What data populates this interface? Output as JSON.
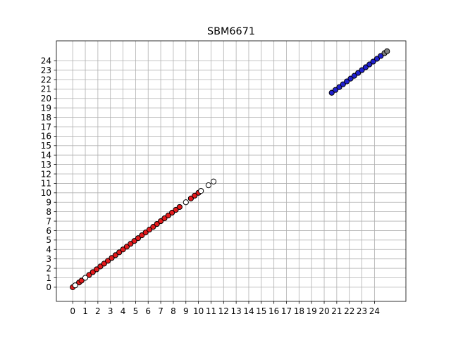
{
  "chart_data": {
    "type": "scatter",
    "title": "SBM6671",
    "xlabel": "",
    "ylabel": "",
    "xlim": [
      -1.3,
      26.5
    ],
    "ylim": [
      -1.5,
      26.1
    ],
    "grid": true,
    "x_ticks": [
      "0",
      "1",
      "2",
      "3",
      "4",
      "5",
      "6",
      "7",
      "8",
      "9",
      "10",
      "11",
      "12",
      "13",
      "14",
      "15",
      "16",
      "17",
      "18",
      "19",
      "20",
      "21",
      "22",
      "23",
      "24"
    ],
    "y_ticks": [
      "0",
      "1",
      "2",
      "3",
      "4",
      "5",
      "6",
      "7",
      "8",
      "9",
      "10",
      "11",
      "12",
      "13",
      "14",
      "15",
      "16",
      "17",
      "18",
      "19",
      "20",
      "21",
      "22",
      "23",
      "24"
    ],
    "series": [
      {
        "color": "#e41a1c",
        "edge": "#000000",
        "x": [
          0.0,
          0.5,
          0.7,
          1.3,
          1.6,
          1.9,
          2.2,
          2.5,
          2.8,
          3.1,
          3.4,
          3.7,
          4.0,
          4.3,
          4.6,
          4.9,
          5.2,
          5.5,
          5.8,
          6.1,
          6.4,
          6.7,
          7.0,
          7.3,
          7.6,
          7.9,
          8.2,
          8.5,
          9.4,
          9.7,
          10.0
        ],
        "y": [
          0.0,
          0.5,
          0.7,
          1.3,
          1.6,
          1.9,
          2.2,
          2.5,
          2.8,
          3.1,
          3.4,
          3.7,
          4.0,
          4.3,
          4.6,
          4.9,
          5.2,
          5.5,
          5.8,
          6.1,
          6.4,
          6.7,
          7.0,
          7.3,
          7.6,
          7.9,
          8.2,
          8.5,
          9.4,
          9.7,
          10.0
        ]
      },
      {
        "color": "#ffffff",
        "edge": "#000000",
        "x": [
          0.2,
          1.0,
          9.0,
          10.2,
          10.8,
          11.2
        ],
        "y": [
          0.2,
          1.0,
          9.0,
          10.2,
          10.8,
          11.2
        ]
      },
      {
        "color": "#1f1fcf",
        "edge": "#000000",
        "x": [
          20.6,
          20.9,
          21.2,
          21.5,
          21.8,
          22.1,
          22.4,
          22.7,
          23.0,
          23.3,
          23.6,
          23.9,
          24.2,
          24.5
        ],
        "y": [
          20.6,
          20.9,
          21.2,
          21.5,
          21.8,
          22.1,
          22.4,
          22.7,
          23.0,
          23.3,
          23.6,
          23.9,
          24.2,
          24.5
        ]
      },
      {
        "color": "#808080",
        "edge": "#000000",
        "x": [
          24.8,
          25.0
        ],
        "y": [
          24.8,
          25.0
        ]
      }
    ]
  }
}
